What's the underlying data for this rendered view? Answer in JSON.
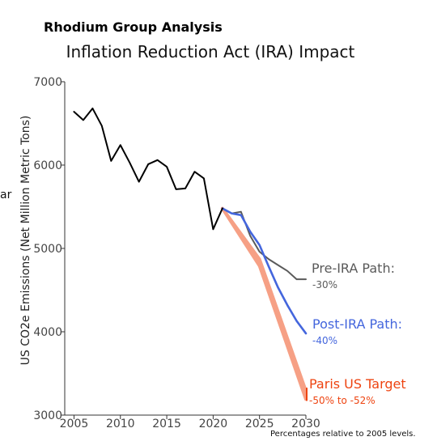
{
  "header": {
    "supertitle": "Rhodium Group Analysis",
    "title": "Inflation Reduction Act (IRA) Impact"
  },
  "stray_text": "ar",
  "footnote": "Percentages relative to 2005 levels.",
  "colors": {
    "history": "#000000",
    "pre_ira": "#5a5a5a",
    "post_ira": "#4466dd",
    "paris": "#f6a085",
    "paris_label": "#ee4411"
  },
  "chart_data": {
    "type": "line",
    "title": "Inflation Reduction Act (IRA) Impact",
    "ylabel": "US CO2e Emissions (Net Million Metric Tons)",
    "xlabel": "",
    "xlim": [
      2004,
      2030
    ],
    "ylim": [
      3000,
      7000
    ],
    "x_ticks": [
      2005,
      2010,
      2015,
      2020,
      2025,
      2030
    ],
    "y_ticks": [
      3000,
      4000,
      5000,
      6000,
      7000
    ],
    "grid": false,
    "series": [
      {
        "id": "history",
        "x": [
          2005,
          2006,
          2007,
          2008,
          2009,
          2010,
          2011,
          2012,
          2013,
          2014,
          2015,
          2016,
          2017,
          2018,
          2019,
          2020,
          2021
        ],
        "y": [
          6640,
          6540,
          6680,
          6470,
          6050,
          6240,
          6030,
          5800,
          6010,
          6060,
          5980,
          5710,
          5720,
          5920,
          5840,
          5230,
          5480
        ]
      },
      {
        "id": "pre_ira",
        "name": "Pre-IRA Path:",
        "pct": "-30%",
        "x": [
          2021,
          2022,
          2023,
          2024,
          2025,
          2026,
          2027,
          2028,
          2029,
          2030
        ],
        "y": [
          5480,
          5420,
          5440,
          5150,
          4960,
          4870,
          4800,
          4730,
          4630,
          4630
        ]
      },
      {
        "id": "post_ira",
        "name": "Post-IRA Path:",
        "pct": "-40%",
        "x": [
          2021,
          2022,
          2023,
          2024,
          2025,
          2026,
          2027,
          2028,
          2029,
          2030
        ],
        "y": [
          5480,
          5420,
          5400,
          5200,
          5040,
          4780,
          4530,
          4320,
          4130,
          3980
        ]
      },
      {
        "id": "paris",
        "name": "Paris US Target",
        "pct": "-50% to -52%",
        "x": [
          2021,
          2025,
          2030
        ],
        "y_upper": [
          5480,
          4870,
          3290
        ],
        "y_lower": [
          5480,
          4790,
          3190
        ]
      }
    ]
  }
}
